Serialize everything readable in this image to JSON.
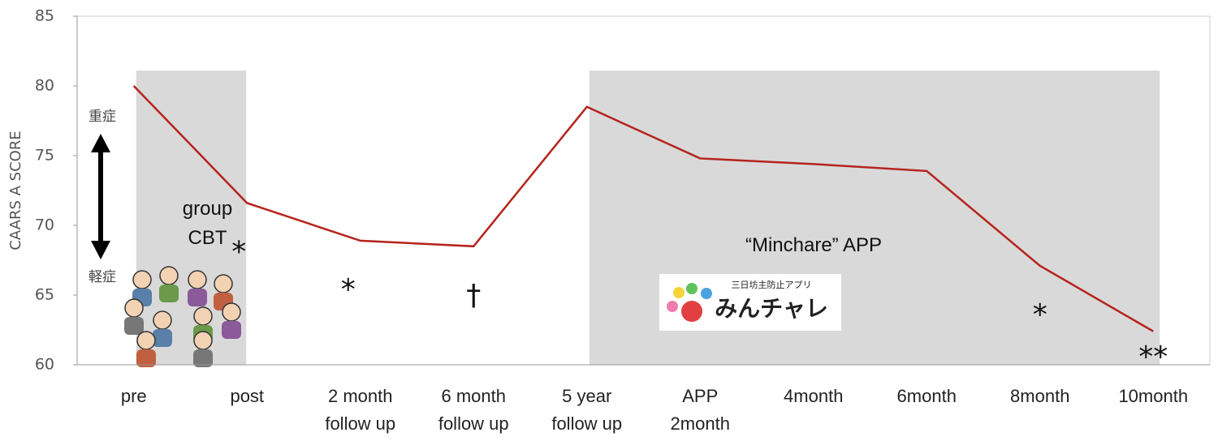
{
  "chart_data": {
    "type": "line",
    "y_label": "CAARS A SCORE",
    "categories": [
      "pre",
      "post",
      "2 month\nfollow up",
      "6 month\nfollow up",
      "5 year\nfollow up",
      "APP\n2month",
      "4month",
      "6month",
      "8month",
      "10month"
    ],
    "series": [
      {
        "color": "#b5231c",
        "values": [
          80,
          71.6,
          68.9,
          68.5,
          78.5,
          74.8,
          74.4,
          73.9,
          67.1,
          62.4
        ]
      }
    ],
    "significance": [
      null,
      "*",
      "*",
      "†",
      null,
      null,
      null,
      null,
      "*",
      "**"
    ],
    "ylim": [
      60,
      85
    ],
    "yticks": [
      60,
      65,
      70,
      75,
      80,
      85
    ],
    "grid": false,
    "regions": [
      {
        "label": "group\nCBT",
        "from": 0,
        "to": 1
      },
      {
        "label": "“Minchare” APP",
        "from": 4,
        "to": 9
      }
    ],
    "severity": {
      "high": "重症",
      "low": "軽症"
    },
    "app_logo": {
      "tagline": "三日坊主防止アプリ",
      "name": "みんチャレ"
    }
  }
}
